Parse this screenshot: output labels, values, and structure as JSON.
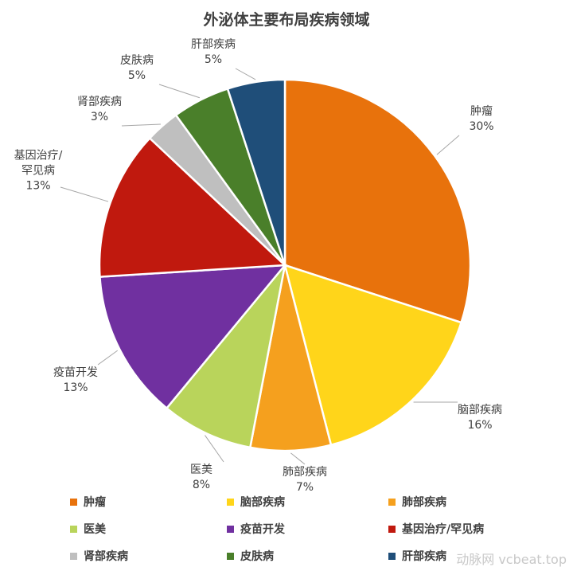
{
  "chart_data": {
    "type": "pie",
    "title": "外泌体主要布局疾病领域",
    "categories": [
      "肿瘤",
      "脑部疾病",
      "肺部疾病",
      "医美",
      "疫苗开发",
      "基因治疗/罕见病",
      "肾部疾病",
      "皮肤病",
      "肝部疾病"
    ],
    "values": [
      30,
      16,
      7,
      8,
      13,
      13,
      3,
      5,
      5
    ],
    "value_labels": [
      "30%",
      "16%",
      "7%",
      "8%",
      "13%",
      "13%",
      "3%",
      "5%",
      "5%"
    ],
    "colors": [
      "#E8720C",
      "#FFD51A",
      "#F5A01E",
      "#B9D45B",
      "#7030A0",
      "#C0190E",
      "#BFBFBF",
      "#4A7F2A",
      "#1F4E79"
    ],
    "legend": "bottom"
  },
  "watermark": "动脉网 vcbeat.top"
}
